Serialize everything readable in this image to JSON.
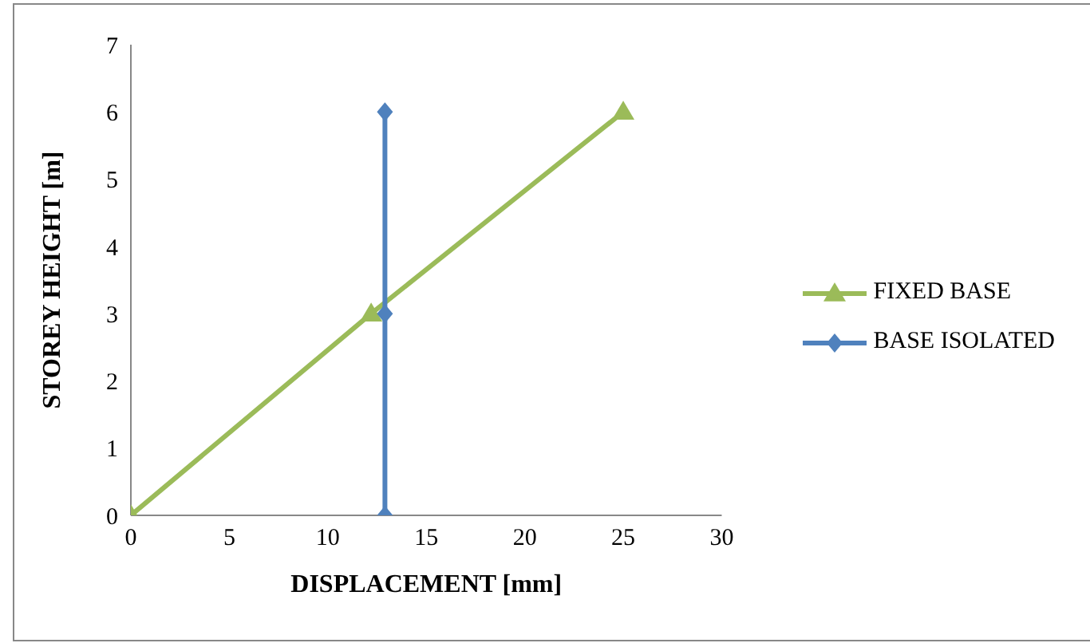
{
  "chart_data": {
    "type": "line",
    "xlabel": "DISPLACEMENT [mm]",
    "ylabel": "STOREY HEIGHT  [m]",
    "xlim": [
      0,
      30
    ],
    "xticks": [
      0,
      5,
      10,
      15,
      20,
      25,
      30
    ],
    "ylim": [
      0,
      7
    ],
    "yticks": [
      0,
      1,
      2,
      3,
      4,
      5,
      6,
      7
    ],
    "grid": false,
    "legend": "right",
    "series": [
      {
        "name": "FIXED BASE",
        "color": "#9bbb59",
        "marker": "triangle",
        "x": [
          0,
          12.2,
          25
        ],
        "values": [
          0,
          3,
          6
        ]
      },
      {
        "name": "BASE ISOLATED",
        "color": "#4f81bd",
        "marker": "diamond",
        "x": [
          12.9,
          12.9,
          12.9
        ],
        "values": [
          0,
          3,
          6
        ]
      }
    ]
  }
}
